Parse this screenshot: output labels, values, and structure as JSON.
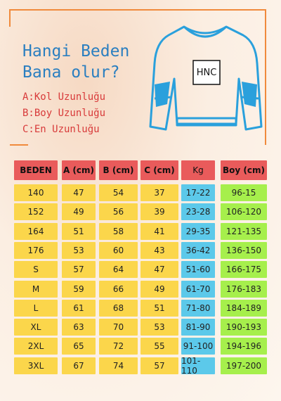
{
  "header": {
    "title_lines": [
      "Hangi Beden",
      "Bana olur?"
    ],
    "legend": [
      "A:Kol Uzunluğu",
      "B:Boy Uzunluğu",
      "C:En Uzunluğu"
    ],
    "logo": "HNC"
  },
  "table": {
    "columns": [
      "BEDEN",
      "A (cm)",
      "B (cm)",
      "C (cm)",
      "Kg",
      "Boy (cm)"
    ],
    "rows": [
      [
        "140",
        "47",
        "54",
        "37",
        "17-22",
        "96-15"
      ],
      [
        "152",
        "49",
        "56",
        "39",
        "23-28",
        "106-120"
      ],
      [
        "164",
        "51",
        "58",
        "41",
        "29-35",
        "121-135"
      ],
      [
        "176",
        "53",
        "60",
        "43",
        "36-42",
        "136-150"
      ],
      [
        "S",
        "57",
        "64",
        "47",
        "51-60",
        "166-175"
      ],
      [
        "M",
        "59",
        "66",
        "49",
        "61-70",
        "176-183"
      ],
      [
        "L",
        "61",
        "68",
        "51",
        "71-80",
        "184-189"
      ],
      [
        "XL",
        "63",
        "70",
        "53",
        "81-90",
        "190-193"
      ],
      [
        "2XL",
        "65",
        "72",
        "55",
        "91-100",
        "194-196"
      ],
      [
        "3XL",
        "67",
        "74",
        "57",
        "101-110",
        "197-200"
      ]
    ]
  }
}
